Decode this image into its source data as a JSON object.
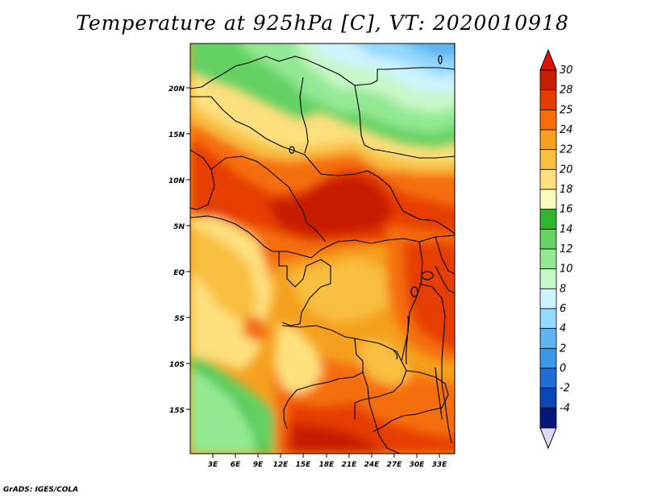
{
  "title": "Temperature at 925hPa [C], VT: 2020010918",
  "credit": "GrADS: IGES/COLA",
  "map": {
    "lat_labels": [
      "20N",
      "15N",
      "10N",
      "5N",
      "EQ",
      "5S",
      "10S",
      "15S"
    ],
    "lon_labels": [
      "3E",
      "6E",
      "9E",
      "12E",
      "15E",
      "18E",
      "21E",
      "24E",
      "27E",
      "30E",
      "33E"
    ]
  },
  "colorbar": {
    "unit": "C",
    "labels": [
      "30",
      "28",
      "25",
      "24",
      "22",
      "20",
      "18",
      "16",
      "14",
      "12",
      "10",
      "8",
      "6",
      "4",
      "2",
      "0",
      "-2",
      "-4"
    ],
    "colors": [
      "#c81e00",
      "#e63c00",
      "#f56e0a",
      "#f5a01e",
      "#f8bf41",
      "#fde07d",
      "#fbfbbf",
      "#2fb72f",
      "#64d264",
      "#93e993",
      "#c8f7c8",
      "#cdf3ff",
      "#94d8fb",
      "#5fb5f1",
      "#3a98e6",
      "#1d6fd6",
      "#0a47b4",
      "#06177a"
    ],
    "top_arrow_color": "#e21200",
    "bottom_arrow_color": "#dcdcf5"
  }
}
